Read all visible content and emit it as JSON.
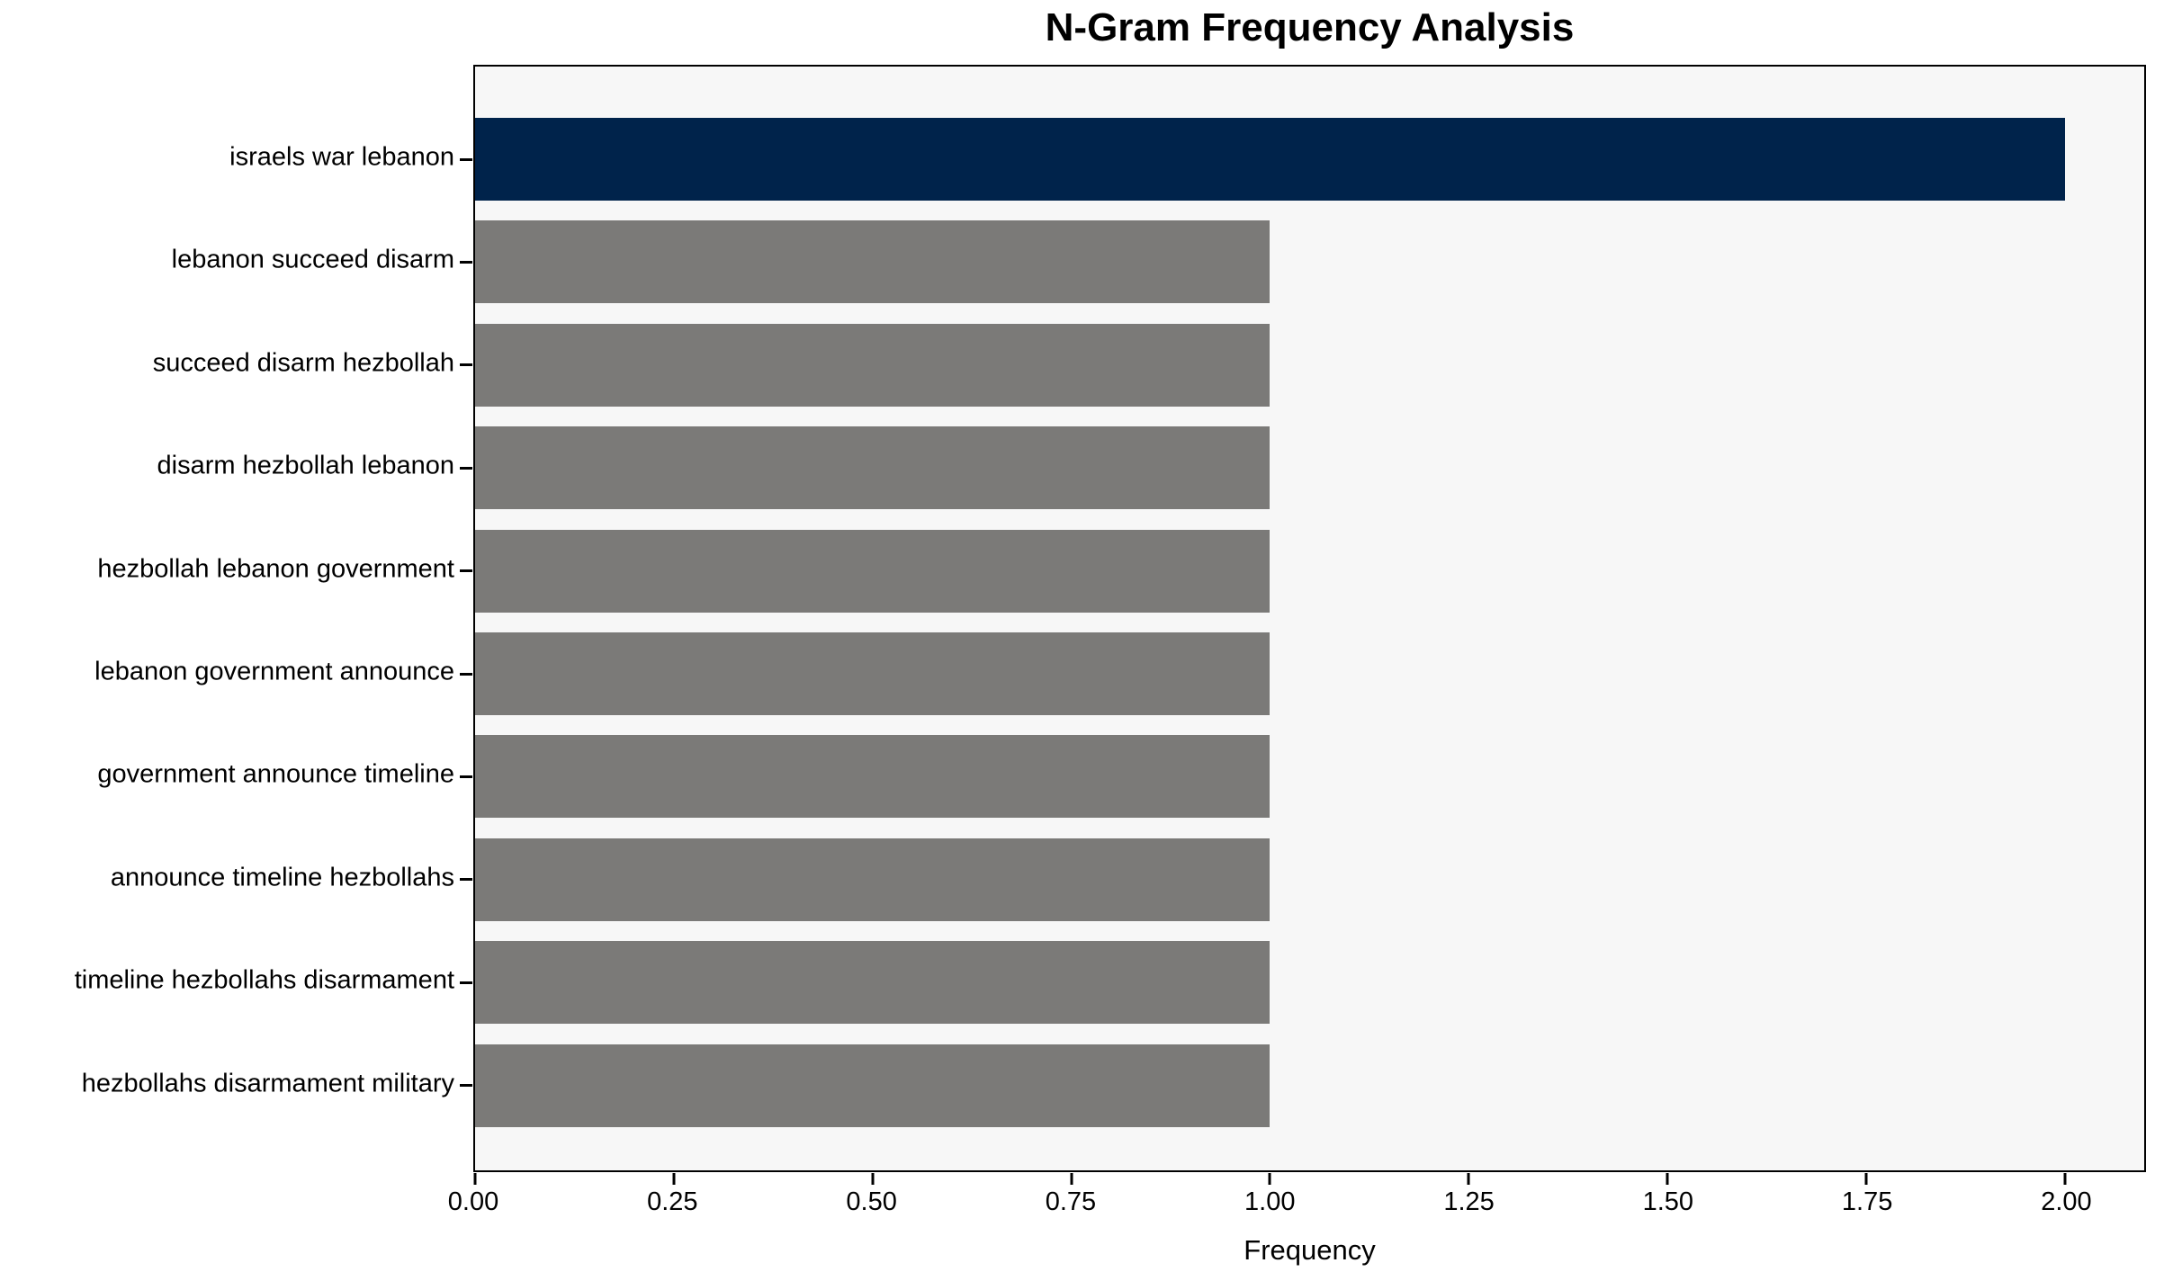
{
  "figure": {
    "title": "N-Gram Frequency Analysis",
    "xlabel": "Frequency"
  },
  "chart_data": {
    "type": "bar",
    "orientation": "horizontal",
    "title": "N-Gram Frequency Analysis",
    "xlabel": "Frequency",
    "ylabel": "",
    "categories": [
      "israels war lebanon",
      "lebanon succeed disarm",
      "succeed disarm hezbollah",
      "disarm hezbollah lebanon",
      "hezbollah lebanon government",
      "lebanon government announce",
      "government announce timeline",
      "announce timeline hezbollahs",
      "timeline hezbollahs disarmament",
      "hezbollahs disarmament military"
    ],
    "values": [
      2,
      1,
      1,
      1,
      1,
      1,
      1,
      1,
      1,
      1
    ],
    "xlim": [
      0,
      2.1
    ],
    "xticks": [
      0,
      0.25,
      0.5,
      0.75,
      1.0,
      1.25,
      1.5,
      1.75,
      2.0
    ],
    "xtick_labels": [
      "0.00",
      "0.25",
      "0.50",
      "0.75",
      "1.00",
      "1.25",
      "1.50",
      "1.75",
      "2.00"
    ],
    "grid": false,
    "legend_position": "none",
    "bar_colors": [
      "#00234b",
      "#7b7a78",
      "#7b7a78",
      "#7b7a78",
      "#7b7a78",
      "#7b7a78",
      "#7b7a78",
      "#7b7a78",
      "#7b7a78",
      "#7b7a78"
    ],
    "colors": {
      "highlight_bar": "#00234b",
      "default_bar": "#7b7a78",
      "plot_background": "#f7f7f7",
      "figure_background": "#ffffff",
      "spine": "#000000",
      "text": "#000000"
    }
  }
}
